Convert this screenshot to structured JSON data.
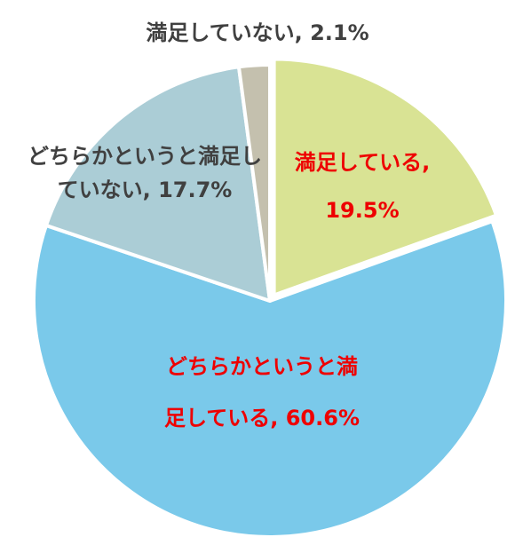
{
  "chart_data": {
    "type": "pie",
    "slices": [
      {
        "label_lines": [
          "満足している,",
          "19.5%"
        ],
        "category": "満足している",
        "value": 19.5,
        "color": "#d9e394",
        "label_color": "#ee0000"
      },
      {
        "label_lines": [
          "どちらかというと満",
          "足している, 60.6%"
        ],
        "category": "どちらかというと満足している",
        "value": 60.6,
        "color": "#7ac9ea",
        "label_color": "#ee0000"
      },
      {
        "label_lines": [
          "どちらかというと満足し",
          "ていない, 17.7%"
        ],
        "category": "どちらかというと満足していない",
        "value": 17.7,
        "color": "#abcdd6",
        "label_color": "#404040"
      },
      {
        "label_lines": [
          "満足していない, 2.1%"
        ],
        "category": "満足していない",
        "value": 2.1,
        "color": "#c4c0ae",
        "label_color": "#404040"
      }
    ],
    "start": "12 o'clock",
    "direction": "clockwise"
  }
}
